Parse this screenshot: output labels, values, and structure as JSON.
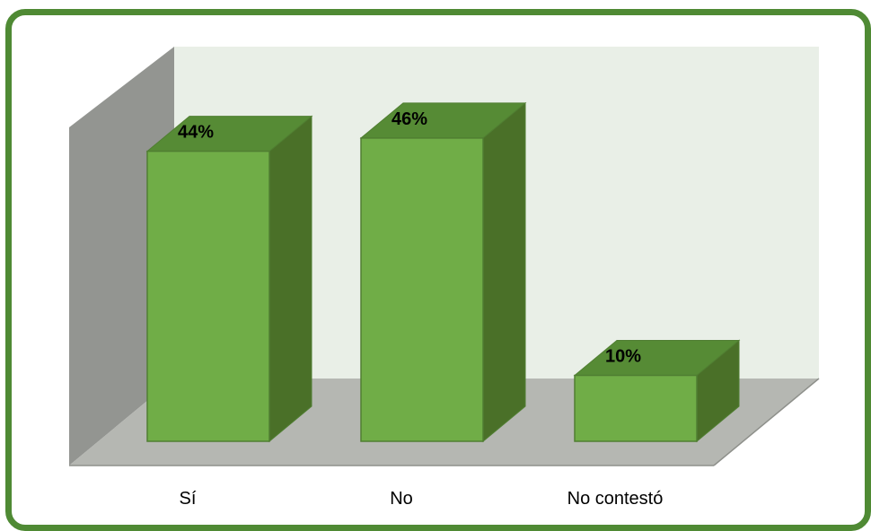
{
  "chart_data": {
    "type": "bar",
    "categories": [
      "Sí",
      "No",
      "No contestó"
    ],
    "values": [
      44,
      46,
      10
    ],
    "value_labels": [
      "44%",
      "46%",
      "10%"
    ],
    "ylim": [
      0,
      50
    ],
    "title": "",
    "xlabel": "",
    "ylabel": "",
    "grid": false,
    "three_d": true,
    "colors": {
      "bar_front": "#70ad47",
      "bar_side": "#4a7028",
      "bar_top": "#568b35",
      "bar_edge": "#507e32",
      "back_wall": "#e9efe7",
      "side_wall": "#939591",
      "floor": "#b5b7b2",
      "frame": "#4f8a34"
    }
  }
}
